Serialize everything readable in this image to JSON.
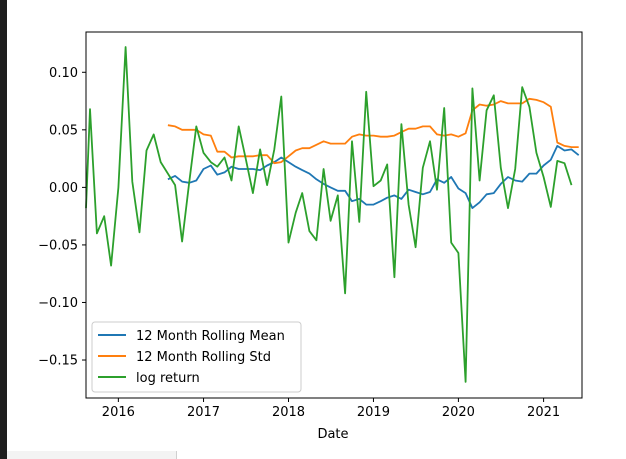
{
  "chart_data": {
    "type": "line",
    "title": "",
    "xlabel": "Date",
    "ylabel": "",
    "xlim": [
      "2015-08-15",
      "2021-06-15"
    ],
    "ylim": [
      -0.183,
      0.135
    ],
    "x_ticks": [
      {
        "date": "2016-01-01",
        "label": "2016"
      },
      {
        "date": "2017-01-01",
        "label": "2017"
      },
      {
        "date": "2018-01-01",
        "label": "2018"
      },
      {
        "date": "2019-01-01",
        "label": "2019"
      },
      {
        "date": "2020-01-01",
        "label": "2020"
      },
      {
        "date": "2021-01-01",
        "label": "2021"
      }
    ],
    "y_ticks": [
      {
        "value": 0.1,
        "label": "0.10"
      },
      {
        "value": 0.05,
        "label": "0.05"
      },
      {
        "value": 0.0,
        "label": "0.00"
      },
      {
        "value": -0.05,
        "label": "−0.05"
      },
      {
        "value": -0.1,
        "label": "−0.10"
      },
      {
        "value": -0.15,
        "label": "−0.15"
      }
    ],
    "legend_position": "lower-left",
    "grid": false,
    "series": [
      {
        "name": "12 Month Rolling Mean",
        "color": "#1f77b4",
        "points": [
          [
            "2016-08-01",
            0.007
          ],
          [
            "2016-09-01",
            0.01
          ],
          [
            "2016-10-01",
            0.005
          ],
          [
            "2016-11-01",
            0.004
          ],
          [
            "2016-12-01",
            0.006
          ],
          [
            "2017-01-01",
            0.016
          ],
          [
            "2017-02-01",
            0.019
          ],
          [
            "2017-03-01",
            0.011
          ],
          [
            "2017-04-01",
            0.013
          ],
          [
            "2017-05-01",
            0.018
          ],
          [
            "2017-06-01",
            0.016
          ],
          [
            "2017-07-01",
            0.016
          ],
          [
            "2017-08-01",
            0.016
          ],
          [
            "2017-09-01",
            0.015
          ],
          [
            "2017-10-01",
            0.019
          ],
          [
            "2017-11-01",
            0.022
          ],
          [
            "2017-12-01",
            0.026
          ],
          [
            "2018-01-01",
            0.022
          ],
          [
            "2018-02-01",
            0.018
          ],
          [
            "2018-03-01",
            0.015
          ],
          [
            "2018-04-01",
            0.012
          ],
          [
            "2018-05-01",
            0.007
          ],
          [
            "2018-06-01",
            0.003
          ],
          [
            "2018-07-01",
            0.0
          ],
          [
            "2018-08-01",
            -0.003
          ],
          [
            "2018-09-01",
            -0.003
          ],
          [
            "2018-10-01",
            -0.012
          ],
          [
            "2018-11-01",
            -0.01
          ],
          [
            "2018-12-01",
            -0.015
          ],
          [
            "2019-01-01",
            -0.015
          ],
          [
            "2019-02-01",
            -0.012
          ],
          [
            "2019-03-01",
            -0.009
          ],
          [
            "2019-04-01",
            -0.007
          ],
          [
            "2019-05-01",
            -0.01
          ],
          [
            "2019-06-01",
            -0.002
          ],
          [
            "2019-07-01",
            -0.004
          ],
          [
            "2019-08-01",
            -0.006
          ],
          [
            "2019-09-01",
            -0.004
          ],
          [
            "2019-10-01",
            0.007
          ],
          [
            "2019-11-01",
            0.004
          ],
          [
            "2019-12-01",
            0.009
          ],
          [
            "2020-01-01",
            -0.001
          ],
          [
            "2020-02-01",
            -0.005
          ],
          [
            "2020-03-01",
            -0.018
          ],
          [
            "2020-04-01",
            -0.013
          ],
          [
            "2020-05-01",
            -0.006
          ],
          [
            "2020-06-01",
            -0.005
          ],
          [
            "2020-07-01",
            0.003
          ],
          [
            "2020-08-01",
            0.009
          ],
          [
            "2020-09-01",
            0.006
          ],
          [
            "2020-10-01",
            0.005
          ],
          [
            "2020-11-01",
            0.012
          ],
          [
            "2020-12-01",
            0.012
          ],
          [
            "2021-01-01",
            0.019
          ],
          [
            "2021-02-01",
            0.024
          ],
          [
            "2021-03-01",
            0.036
          ],
          [
            "2021-04-01",
            0.032
          ],
          [
            "2021-05-01",
            0.033
          ],
          [
            "2021-06-01",
            0.028
          ]
        ]
      },
      {
        "name": "12 Month Rolling Std",
        "color": "#ff7f0e",
        "points": [
          [
            "2016-08-01",
            0.054
          ],
          [
            "2016-09-01",
            0.053
          ],
          [
            "2016-10-01",
            0.05
          ],
          [
            "2016-11-01",
            0.05
          ],
          [
            "2016-12-01",
            0.05
          ],
          [
            "2017-01-01",
            0.046
          ],
          [
            "2017-02-01",
            0.045
          ],
          [
            "2017-03-01",
            0.031
          ],
          [
            "2017-04-01",
            0.031
          ],
          [
            "2017-05-01",
            0.026
          ],
          [
            "2017-06-01",
            0.027
          ],
          [
            "2017-07-01",
            0.027
          ],
          [
            "2017-08-01",
            0.027
          ],
          [
            "2017-09-01",
            0.028
          ],
          [
            "2017-10-01",
            0.028
          ],
          [
            "2017-11-01",
            0.021
          ],
          [
            "2017-12-01",
            0.022
          ],
          [
            "2018-01-01",
            0.027
          ],
          [
            "2018-02-01",
            0.032
          ],
          [
            "2018-03-01",
            0.034
          ],
          [
            "2018-04-01",
            0.034
          ],
          [
            "2018-05-01",
            0.037
          ],
          [
            "2018-06-01",
            0.04
          ],
          [
            "2018-07-01",
            0.038
          ],
          [
            "2018-08-01",
            0.038
          ],
          [
            "2018-09-01",
            0.038
          ],
          [
            "2018-10-01",
            0.044
          ],
          [
            "2018-11-01",
            0.046
          ],
          [
            "2018-12-01",
            0.045
          ],
          [
            "2019-01-01",
            0.045
          ],
          [
            "2019-02-01",
            0.044
          ],
          [
            "2019-03-01",
            0.044
          ],
          [
            "2019-04-01",
            0.045
          ],
          [
            "2019-05-01",
            0.048
          ],
          [
            "2019-06-01",
            0.051
          ],
          [
            "2019-07-01",
            0.051
          ],
          [
            "2019-08-01",
            0.053
          ],
          [
            "2019-09-01",
            0.053
          ],
          [
            "2019-10-01",
            0.046
          ],
          [
            "2019-11-01",
            0.045
          ],
          [
            "2019-12-01",
            0.046
          ],
          [
            "2020-01-01",
            0.044
          ],
          [
            "2020-02-01",
            0.047
          ],
          [
            "2020-03-01",
            0.067
          ],
          [
            "2020-04-01",
            0.072
          ],
          [
            "2020-05-01",
            0.071
          ],
          [
            "2020-06-01",
            0.072
          ],
          [
            "2020-07-01",
            0.075
          ],
          [
            "2020-08-01",
            0.073
          ],
          [
            "2020-09-01",
            0.073
          ],
          [
            "2020-10-01",
            0.073
          ],
          [
            "2020-11-01",
            0.077
          ],
          [
            "2020-12-01",
            0.076
          ],
          [
            "2021-01-01",
            0.074
          ],
          [
            "2021-02-01",
            0.07
          ],
          [
            "2021-03-01",
            0.039
          ],
          [
            "2021-04-01",
            0.036
          ],
          [
            "2021-05-01",
            0.035
          ],
          [
            "2021-06-01",
            0.035
          ]
        ]
      },
      {
        "name": "log return",
        "color": "#2ca02c",
        "points": [
          [
            "2015-08-15",
            -0.018
          ],
          [
            "2015-09-01",
            0.068
          ],
          [
            "2015-10-01",
            -0.04
          ],
          [
            "2015-11-01",
            -0.025
          ],
          [
            "2015-12-01",
            -0.068
          ],
          [
            "2016-01-01",
            0.0
          ],
          [
            "2016-02-01",
            0.122
          ],
          [
            "2016-03-01",
            0.005
          ],
          [
            "2016-04-01",
            -0.039
          ],
          [
            "2016-05-01",
            0.032
          ],
          [
            "2016-06-01",
            0.046
          ],
          [
            "2016-07-01",
            0.022
          ],
          [
            "2016-08-01",
            0.012
          ],
          [
            "2016-09-01",
            0.002
          ],
          [
            "2016-10-01",
            -0.047
          ],
          [
            "2016-11-01",
            0.005
          ],
          [
            "2016-12-01",
            0.053
          ],
          [
            "2017-01-01",
            0.03
          ],
          [
            "2017-02-01",
            0.022
          ],
          [
            "2017-03-01",
            0.018
          ],
          [
            "2017-04-01",
            0.026
          ],
          [
            "2017-05-01",
            0.006
          ],
          [
            "2017-06-01",
            0.053
          ],
          [
            "2017-07-01",
            0.025
          ],
          [
            "2017-08-01",
            -0.005
          ],
          [
            "2017-09-01",
            0.033
          ],
          [
            "2017-10-01",
            0.002
          ],
          [
            "2017-11-01",
            0.033
          ],
          [
            "2017-12-01",
            0.079
          ],
          [
            "2018-01-01",
            -0.048
          ],
          [
            "2018-02-01",
            -0.022
          ],
          [
            "2018-03-01",
            -0.005
          ],
          [
            "2018-04-01",
            -0.038
          ],
          [
            "2018-05-01",
            -0.046
          ],
          [
            "2018-06-01",
            0.016
          ],
          [
            "2018-07-01",
            -0.029
          ],
          [
            "2018-08-01",
            -0.007
          ],
          [
            "2018-09-01",
            -0.092
          ],
          [
            "2018-10-01",
            0.04
          ],
          [
            "2018-11-01",
            -0.03
          ],
          [
            "2018-12-01",
            0.083
          ],
          [
            "2019-01-01",
            0.001
          ],
          [
            "2019-02-01",
            0.006
          ],
          [
            "2019-03-01",
            0.02
          ],
          [
            "2019-04-01",
            -0.078
          ],
          [
            "2019-05-01",
            0.055
          ],
          [
            "2019-06-01",
            -0.015
          ],
          [
            "2019-07-01",
            -0.052
          ],
          [
            "2019-08-01",
            0.017
          ],
          [
            "2019-09-01",
            0.04
          ],
          [
            "2019-10-01",
            -0.002
          ],
          [
            "2019-11-01",
            0.069
          ],
          [
            "2019-12-01",
            -0.048
          ],
          [
            "2020-01-01",
            -0.057
          ],
          [
            "2020-02-01",
            -0.169
          ],
          [
            "2020-03-01",
            0.086
          ],
          [
            "2020-04-01",
            0.006
          ],
          [
            "2020-05-01",
            0.067
          ],
          [
            "2020-06-01",
            0.08
          ],
          [
            "2020-07-01",
            0.017
          ],
          [
            "2020-08-01",
            -0.018
          ],
          [
            "2020-09-01",
            0.016
          ],
          [
            "2020-10-01",
            0.087
          ],
          [
            "2020-11-01",
            0.07
          ],
          [
            "2020-12-01",
            0.03
          ],
          [
            "2021-01-01",
            0.009
          ],
          [
            "2021-02-01",
            -0.017
          ],
          [
            "2021-03-01",
            0.023
          ],
          [
            "2021-04-01",
            0.021
          ],
          [
            "2021-05-01",
            0.002
          ]
        ]
      }
    ]
  }
}
